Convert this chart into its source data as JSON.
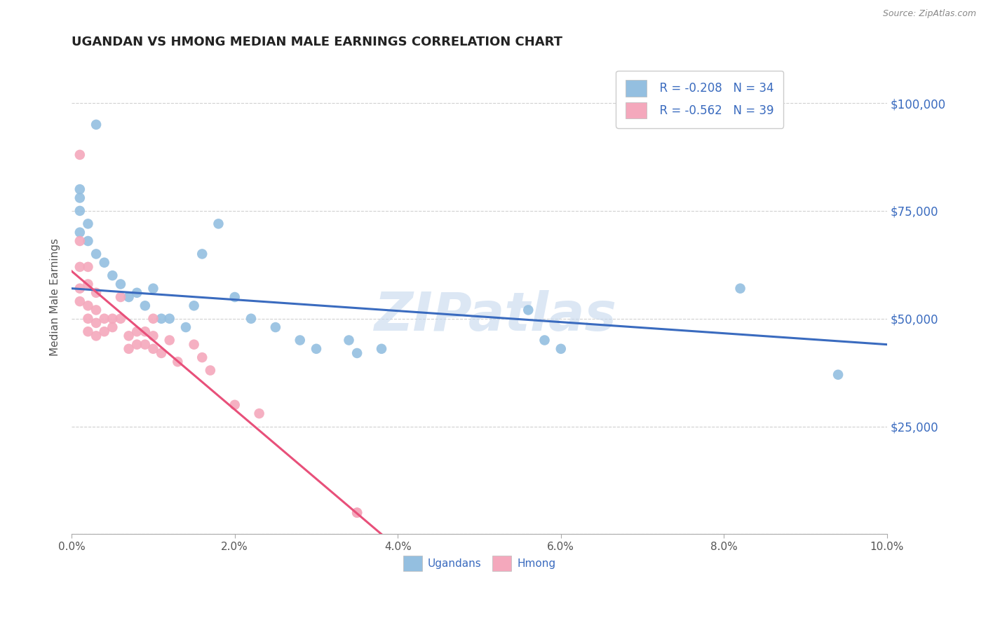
{
  "title": "UGANDAN VS HMONG MEDIAN MALE EARNINGS CORRELATION CHART",
  "source": "Source: ZipAtlas.com",
  "ylabel": "Median Male Earnings",
  "xlim": [
    0.0,
    0.1
  ],
  "ylim": [
    0,
    110000
  ],
  "yticks": [
    0,
    25000,
    50000,
    75000,
    100000
  ],
  "ytick_labels": [
    "",
    "$25,000",
    "$50,000",
    "$75,000",
    "$100,000"
  ],
  "background_color": "#ffffff",
  "ugandan_color": "#94bfe0",
  "hmong_color": "#f4a8bc",
  "ugandan_line_color": "#3a6bbf",
  "hmong_line_color": "#e8507a",
  "legend_R_ugandan": "R = -0.208",
  "legend_N_ugandan": "N = 34",
  "legend_R_hmong": "R = -0.562",
  "legend_N_hmong": "N = 39",
  "ugandan_x": [
    0.003,
    0.001,
    0.001,
    0.001,
    0.001,
    0.002,
    0.002,
    0.003,
    0.004,
    0.005,
    0.006,
    0.007,
    0.008,
    0.009,
    0.01,
    0.011,
    0.012,
    0.014,
    0.015,
    0.016,
    0.018,
    0.02,
    0.022,
    0.025,
    0.028,
    0.03,
    0.034,
    0.038,
    0.056,
    0.058,
    0.06,
    0.082,
    0.094,
    0.035
  ],
  "ugandan_y": [
    95000,
    75000,
    80000,
    78000,
    70000,
    72000,
    68000,
    65000,
    63000,
    60000,
    58000,
    55000,
    56000,
    53000,
    57000,
    50000,
    50000,
    48000,
    53000,
    65000,
    72000,
    55000,
    50000,
    48000,
    45000,
    43000,
    45000,
    43000,
    52000,
    45000,
    43000,
    57000,
    37000,
    42000
  ],
  "hmong_x": [
    0.001,
    0.001,
    0.001,
    0.001,
    0.001,
    0.002,
    0.002,
    0.002,
    0.002,
    0.002,
    0.003,
    0.003,
    0.003,
    0.003,
    0.004,
    0.004,
    0.005,
    0.005,
    0.006,
    0.006,
    0.007,
    0.007,
    0.008,
    0.008,
    0.009,
    0.009,
    0.01,
    0.01,
    0.01,
    0.011,
    0.012,
    0.013,
    0.015,
    0.016,
    0.017,
    0.02,
    0.023,
    0.035,
    0.035
  ],
  "hmong_y": [
    88000,
    68000,
    62000,
    57000,
    54000,
    62000,
    58000,
    53000,
    50000,
    47000,
    56000,
    52000,
    49000,
    46000,
    50000,
    47000,
    50000,
    48000,
    55000,
    50000,
    46000,
    43000,
    47000,
    44000,
    47000,
    44000,
    50000,
    46000,
    43000,
    42000,
    45000,
    40000,
    44000,
    41000,
    38000,
    30000,
    28000,
    5000,
    5000
  ],
  "ugandan_trendline_x": [
    0.0,
    0.1
  ],
  "ugandan_trendline_y": [
    57000,
    44000
  ],
  "hmong_trendline_x": [
    0.0,
    0.038
  ],
  "hmong_trendline_y": [
    61000,
    0
  ],
  "watermark": "ZIPatlas",
  "grid_color": "#d0d0d0",
  "xticks": [
    0.0,
    0.02,
    0.04,
    0.06,
    0.08,
    0.1
  ]
}
